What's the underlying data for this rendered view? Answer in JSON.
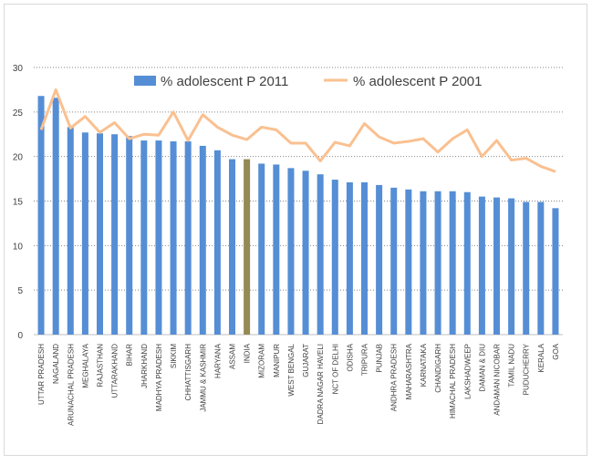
{
  "chart_data": {
    "type": "bar",
    "title": "",
    "xlabel": "",
    "ylabel": "",
    "ylim": [
      0,
      30
    ],
    "yticks": [
      0,
      5,
      10,
      15,
      20,
      25,
      30
    ],
    "grid": true,
    "legend_position": "top",
    "categories": [
      "UTTAR PRADESH",
      "NAGALAND",
      "ARUNACHAL PRADESH",
      "MEGHALAYA",
      "RAJASTHAN",
      "UTTARAKHAND",
      "BIHAR",
      "JHARKHAND",
      "MADHYA PRADESH",
      "SIKKIM",
      "CHHATTISGARH",
      "JAMMU & KASHMIR",
      "HARYANA",
      "ASSAM",
      "INDIA",
      "MIZORAM",
      "MANIPUR",
      "WEST BENGAL",
      "GUJARAT",
      "DADRA NAGAR HAVELI",
      "NCT OF DELHI",
      "ODISHA",
      "TRIPURA",
      "PUNJAB",
      "ANDHRA PRADESH",
      "MAHARASHTRA",
      "KARNATAKA",
      "CHANDIGARH",
      "HIMACHAL PRADESH",
      "LAKSHADWEEP",
      "DAMAN & DIU",
      "ANDAMAN NICOBAR",
      "TAMIL NADU",
      "PUDUCHERRY",
      "KERALA",
      "GOA"
    ],
    "series": [
      {
        "name": "% adolescent P 2011",
        "type": "bar",
        "color": "#558ed5",
        "highlight": {
          "category": "INDIA",
          "color": "#948a54"
        },
        "values": [
          26.8,
          26.6,
          23.3,
          22.7,
          22.6,
          22.5,
          22.3,
          21.8,
          21.8,
          21.7,
          21.7,
          21.2,
          20.7,
          19.7,
          19.7,
          19.2,
          19.1,
          18.7,
          18.4,
          18.0,
          17.4,
          17.1,
          17.1,
          16.8,
          16.5,
          16.3,
          16.1,
          16.1,
          16.1,
          16.0,
          15.5,
          15.4,
          15.3,
          14.9,
          14.9,
          14.2
        ]
      },
      {
        "name": "% adolescent P 2001",
        "type": "line",
        "color": "#fac090",
        "values": [
          23.0,
          27.5,
          23.2,
          24.5,
          22.7,
          23.8,
          22.0,
          22.5,
          22.4,
          25.0,
          21.8,
          24.7,
          23.3,
          22.4,
          21.9,
          23.3,
          23.0,
          21.5,
          21.5,
          19.5,
          21.6,
          21.2,
          23.7,
          22.2,
          21.5,
          21.7,
          22.0,
          20.5,
          22.0,
          23.0,
          20.0,
          21.8,
          19.6,
          19.8,
          18.9,
          18.3
        ]
      }
    ]
  }
}
